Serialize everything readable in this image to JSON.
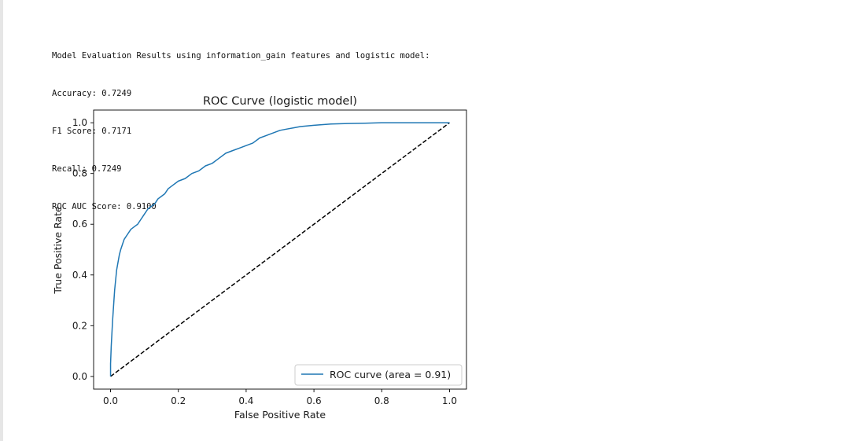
{
  "output": {
    "header": "Model Evaluation Results using information_gain features and logistic model:",
    "metrics": [
      "Accuracy: 0.7249",
      "F1 Score: 0.7171",
      "Recall: 0.7249",
      "ROC AUC Score: 0.9100"
    ]
  },
  "chart_data": {
    "type": "line",
    "title": "ROC Curve (logistic model)",
    "xlabel": "False Positive Rate",
    "ylabel": "True Positive Rate",
    "xlim": [
      -0.05,
      1.05
    ],
    "ylim": [
      -0.05,
      1.05
    ],
    "xticks": [
      "0.0",
      "0.2",
      "0.4",
      "0.6",
      "0.8",
      "1.0"
    ],
    "yticks": [
      "0.0",
      "0.2",
      "0.4",
      "0.6",
      "0.8",
      "1.0"
    ],
    "grid": false,
    "legend_position": "lower right",
    "series": [
      {
        "name": "ROC curve (area = 0.91)",
        "color": "#1f77b4",
        "style": "solid",
        "x": [
          0.0,
          0.0,
          0.002,
          0.004,
          0.006,
          0.008,
          0.01,
          0.012,
          0.015,
          0.018,
          0.022,
          0.026,
          0.03,
          0.035,
          0.04,
          0.05,
          0.06,
          0.07,
          0.08,
          0.09,
          0.1,
          0.11,
          0.12,
          0.13,
          0.14,
          0.15,
          0.16,
          0.17,
          0.18,
          0.2,
          0.22,
          0.24,
          0.26,
          0.28,
          0.3,
          0.32,
          0.34,
          0.36,
          0.38,
          0.4,
          0.42,
          0.44,
          0.46,
          0.48,
          0.5,
          0.52,
          0.54,
          0.56,
          0.6,
          0.65,
          0.7,
          0.75,
          0.8,
          0.9,
          1.0
        ],
        "y": [
          0.0,
          0.05,
          0.12,
          0.17,
          0.22,
          0.26,
          0.3,
          0.34,
          0.38,
          0.42,
          0.45,
          0.48,
          0.5,
          0.52,
          0.54,
          0.56,
          0.58,
          0.59,
          0.6,
          0.62,
          0.64,
          0.66,
          0.67,
          0.68,
          0.7,
          0.71,
          0.72,
          0.74,
          0.75,
          0.77,
          0.78,
          0.8,
          0.81,
          0.83,
          0.84,
          0.86,
          0.88,
          0.89,
          0.9,
          0.91,
          0.92,
          0.94,
          0.95,
          0.96,
          0.97,
          0.975,
          0.98,
          0.985,
          0.99,
          0.995,
          0.997,
          0.998,
          1.0,
          1.0,
          1.0
        ]
      },
      {
        "name": "",
        "color": "#000000",
        "style": "dashed",
        "x": [
          0.0,
          1.0
        ],
        "y": [
          0.0,
          1.0
        ]
      }
    ]
  }
}
